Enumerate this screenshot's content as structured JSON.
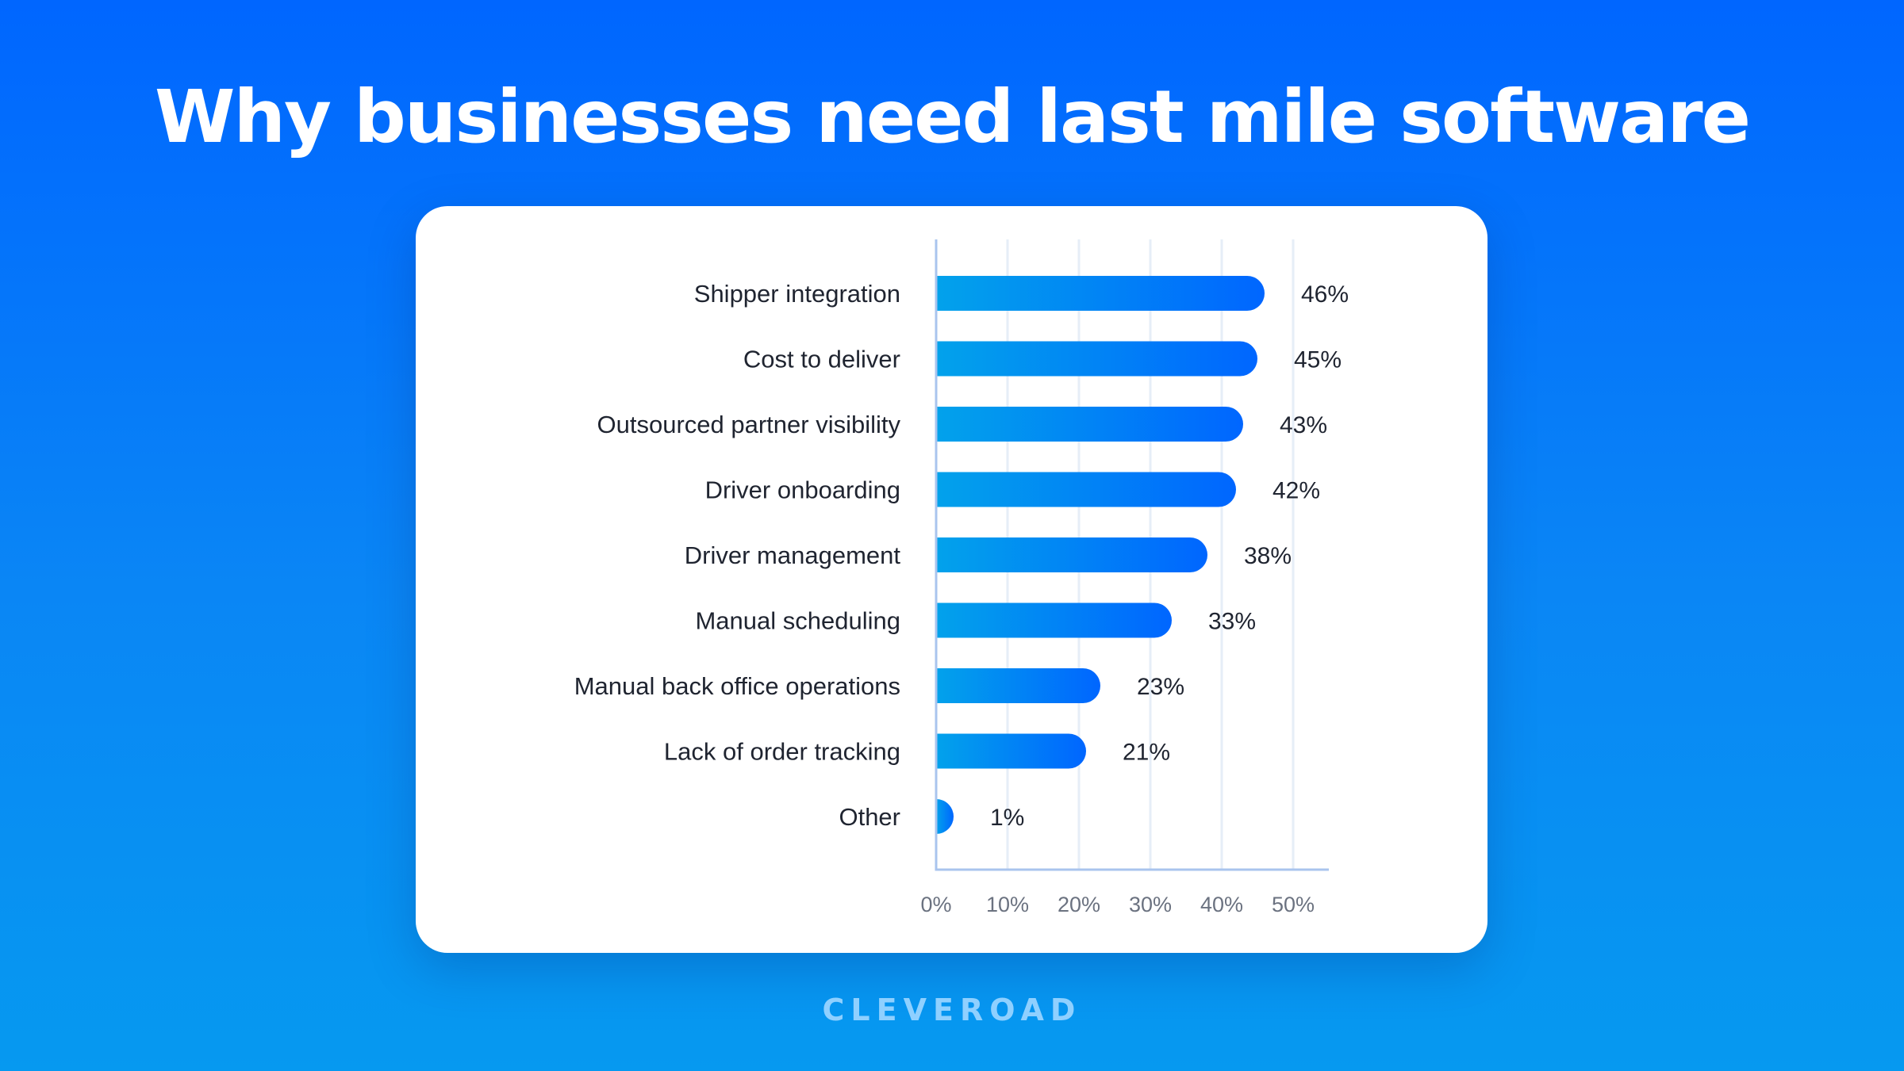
{
  "title": "Why businesses need last mile software",
  "brand": "CLEVEROAD",
  "colors": {
    "bar_start": "#02A2EB",
    "bar_end": "#0066FF",
    "grid": "#E6EEF7",
    "axis": "#A9C4EE"
  },
  "chart_data": {
    "type": "bar",
    "orientation": "horizontal",
    "categories": [
      "Shipper integration",
      "Cost to deliver",
      "Outsourced partner visibility",
      "Driver onboarding",
      "Driver management",
      "Manual scheduling",
      "Manual back office operations",
      "Lack of order tracking",
      "Other"
    ],
    "values": [
      46,
      45,
      43,
      42,
      38,
      33,
      23,
      21,
      1
    ],
    "value_labels": [
      "46%",
      "45%",
      "43%",
      "42%",
      "38%",
      "33%",
      "23%",
      "21%",
      "1%"
    ],
    "x_ticks": [
      0,
      10,
      20,
      30,
      40,
      50
    ],
    "x_tick_labels": [
      "0%",
      "10%",
      "20%",
      "30%",
      "40%",
      "50%"
    ],
    "xlim": [
      0,
      55
    ],
    "grid": true
  }
}
